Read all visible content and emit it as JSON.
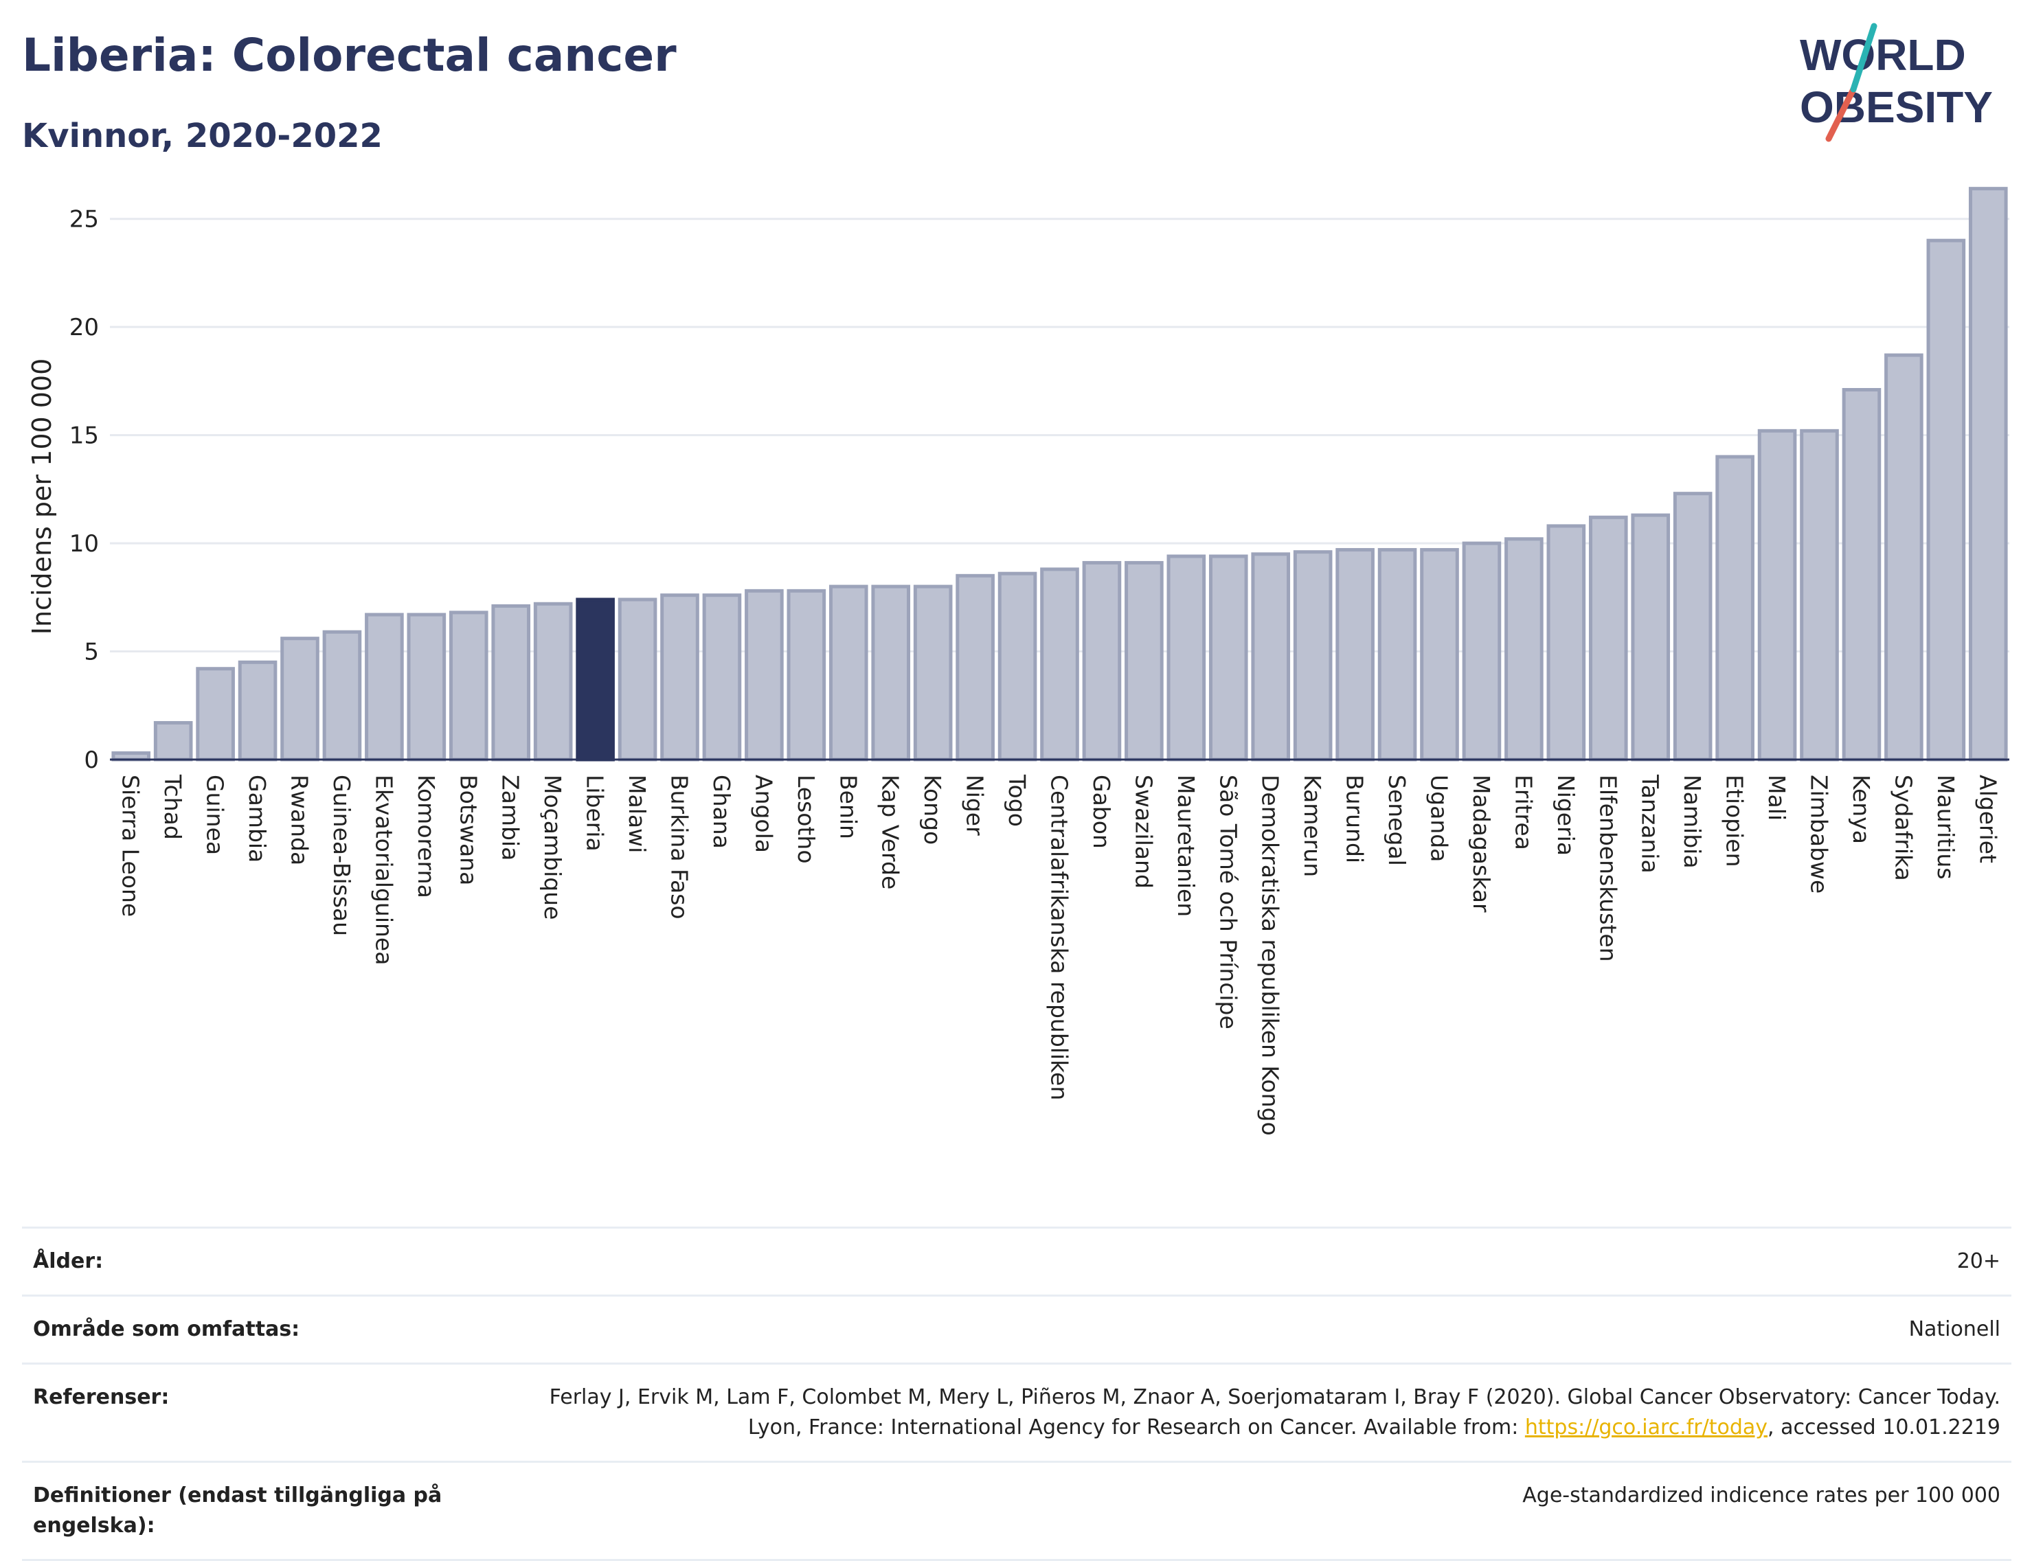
{
  "header": {
    "title": "Liberia: Colorectal cancer",
    "subtitle": "Kvinnor, 2020-2022"
  },
  "logo": {
    "line1": "WORLD",
    "line2": "OBESITY"
  },
  "colors": {
    "bar": "#bcc1d1",
    "bar_border": "#9ca3ba",
    "highlight": "#2b355e",
    "text": "#2b355e",
    "slash_teal": "#2ab3b3",
    "slash_red": "#e2604f"
  },
  "chart_data": {
    "type": "bar",
    "ylabel": "Incidens per 100 000",
    "xlabel": "",
    "ylim": [
      0,
      27.5
    ],
    "yticks": [
      0,
      5,
      10,
      15,
      20,
      25
    ],
    "grid": true,
    "highlight": "Liberia",
    "categories": [
      "Sierra Leone",
      "Tchad",
      "Guinea",
      "Gambia",
      "Rwanda",
      "Guinea-Bissau",
      "Ekvatorialguinea",
      "Komorerna",
      "Botswana",
      "Zambia",
      "Moçambique",
      "Liberia",
      "Malawi",
      "Burkina Faso",
      "Ghana",
      "Angola",
      "Lesotho",
      "Benin",
      "Kap Verde",
      "Kongo",
      "Niger",
      "Togo",
      "Centralafrikanska republiken",
      "Gabon",
      "Swaziland",
      "Mauretanien",
      "São Tomé och Príncipe",
      "Demokratiska republiken Kongo",
      "Kamerun",
      "Burundi",
      "Senegal",
      "Uganda",
      "Madagaskar",
      "Eritrea",
      "Nigeria",
      "Elfenbenskusten",
      "Tanzania",
      "Namibia",
      "Etiopien",
      "Mali",
      "Zimbabwe",
      "Kenya",
      "Sydafrika",
      "Mauritius",
      "Algeriet"
    ],
    "values": [
      0.3,
      1.7,
      4.2,
      4.5,
      5.6,
      5.9,
      6.7,
      6.7,
      6.8,
      7.1,
      7.2,
      7.4,
      7.4,
      7.6,
      7.6,
      7.8,
      7.8,
      8.0,
      8.0,
      8.0,
      8.5,
      8.6,
      8.8,
      9.1,
      9.1,
      9.4,
      9.4,
      9.5,
      9.6,
      9.7,
      9.7,
      9.7,
      10.0,
      10.2,
      10.8,
      11.2,
      11.3,
      12.3,
      14.0,
      15.2,
      15.2,
      17.1,
      18.7,
      24.0,
      26.4
    ]
  },
  "meta": {
    "age_label": "Ålder:",
    "age_value": "20+",
    "area_label": "Område som omfattas:",
    "area_value": "Nationell",
    "ref_label": "Referenser:",
    "ref_text1": "Ferlay J, Ervik M, Lam F, Colombet M, Mery L, Piñeros M, Znaor A, Soerjomataram I, Bray F (2020). Global Cancer Observatory: Cancer Today. Lyon, France: International Agency for Research on Cancer. Available from: ",
    "ref_link": "https://gco.iarc.fr/today",
    "ref_text2": ", accessed 10.01.2219",
    "def_label": "Definitioner (endast tillgängliga på engelska):",
    "def_value": "Age-standardized indicence rates per 100 000"
  }
}
